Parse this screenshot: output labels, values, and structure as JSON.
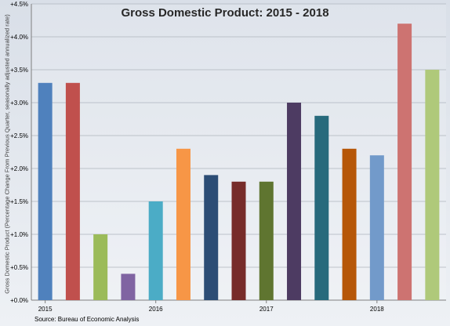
{
  "chart_data": {
    "type": "bar",
    "title": "Gross Domestic Product: 2015 - 2018",
    "ylabel": "Gross Domestic Product (Percentage Change From Previous Quarter, seasonally adjusted annualized rate)",
    "xlabel": "",
    "source": "Source: Bureau of Economic Analysis",
    "ylim": [
      0,
      4.5
    ],
    "yticks": [
      "+0.0%",
      "+0.5%",
      "+1.0%",
      "+1.5%",
      "+2.0%",
      "+2.5%",
      "+3.0%",
      "+3.5%",
      "+4.0%",
      "+4.5%"
    ],
    "categories": [
      "2015",
      "",
      "",
      "",
      "2016",
      "",
      "",
      "",
      "2017",
      "",
      "",
      "",
      "2018",
      "",
      ""
    ],
    "values": [
      3.3,
      3.3,
      1.0,
      0.4,
      1.5,
      2.3,
      1.9,
      1.8,
      1.8,
      3.0,
      2.8,
      2.3,
      2.2,
      4.2,
      3.5
    ],
    "colors": [
      "#4f81bd",
      "#c0504d",
      "#9bbb59",
      "#8064a2",
      "#4bacc6",
      "#f79646",
      "#2c4d75",
      "#772c2a",
      "#5f7530",
      "#4d3b62",
      "#276a7c",
      "#b65708",
      "#729aca",
      "#cd7371",
      "#afc97a"
    ],
    "grid": true,
    "legend": "none"
  }
}
